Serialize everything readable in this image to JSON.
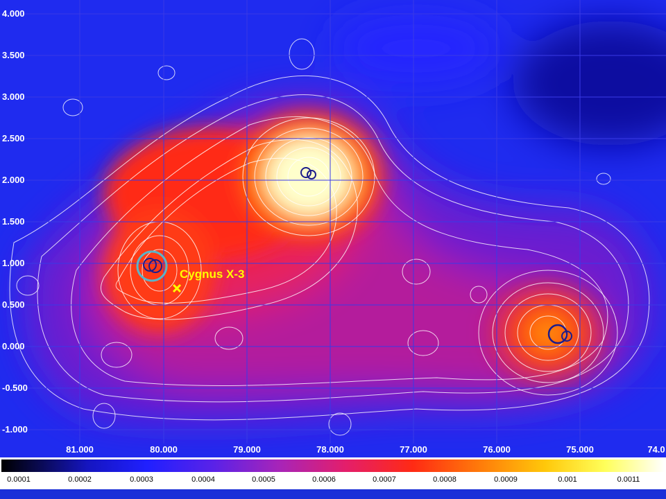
{
  "map": {
    "y_axis_labels": [
      "4.000",
      "3.500",
      "3.000",
      "2.500",
      "2.000",
      "1.500",
      "1.000",
      "0.500",
      "0.000",
      "-0.500",
      "-1.000"
    ],
    "x_axis_labels": [
      "81.000",
      "80.000",
      "79.000",
      "78.000",
      "77.000",
      "76.000",
      "75.000",
      "74.0"
    ],
    "annotation": "Cygnus X-3",
    "annotation_color": "#ffff00",
    "circle_color_dark": "#1c1c8c",
    "circle_color_cyan": "#5ab4c8"
  },
  "colorbar": {
    "ticks": [
      "0.0001",
      "0.0002",
      "0.0003",
      "0.0004",
      "0.0005",
      "0.0006",
      "0.0007",
      "0.0008",
      "0.0009",
      "0.001",
      "0.0011"
    ]
  }
}
